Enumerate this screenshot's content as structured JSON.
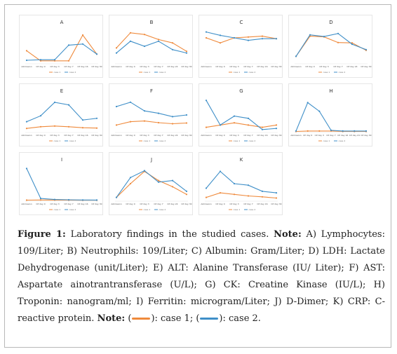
{
  "colors": {
    "case1": "#ef8a3c",
    "case2": "#3f8fc8"
  },
  "figure": {
    "label": "Figure 1:",
    "title_text": " Laboratory findings in the studied cases. ",
    "note_label": "Note:",
    "note_text": " A) Lymphocytes: 109/Liter; B) Neutrophils: 109/Liter; C) Albumin: Gram/Liter; D) LDH: Lactate Dehydrogenase (unit/Liter); E) ALT: Alanine Transferase (IU/ Liter); F) AST: Aspartate ainotrantransferase (U/L); G) CK: Creatine Kinase (IU/L); H) Troponin: nanogram/ml; I) Ferritin: microgram/Liter; J) D-Dimer; K) CRP: C-reactive protein. ",
    "note2_label": "Note:",
    "legend_open1": " (",
    "legend_mid": "): case 1; (",
    "legend_end": "): case 2."
  },
  "chart_data": [
    {
      "panel": "A",
      "type": "line",
      "categories": [
        "Admission",
        "CP day 0",
        "CP day 3",
        "CP day 7",
        "CP day 16",
        "CP day 30"
      ],
      "series": [
        {
          "name": "case 1",
          "values": [
            2.2,
            0.4,
            0.4,
            0.4,
            5.0,
            1.6
          ]
        },
        {
          "name": "case 2",
          "values": [
            0.5,
            0.6,
            0.6,
            3.2,
            3.4,
            1.6
          ]
        }
      ],
      "ylim": [
        0,
        6
      ]
    },
    {
      "panel": "B",
      "type": "line",
      "categories": [
        "Admission",
        "CP day 0",
        "CP day 3",
        "CP day 7",
        "CP day 24",
        "CP day 30"
      ],
      "series": [
        {
          "name": "case 1",
          "values": [
            9.0,
            18.0,
            17.0,
            14.0,
            12.0,
            7.0
          ]
        },
        {
          "name": "case 2",
          "values": [
            6.0,
            13.0,
            10.0,
            13.0,
            8.0,
            6.0
          ]
        }
      ],
      "ylim": [
        0,
        20
      ]
    },
    {
      "panel": "C",
      "type": "line",
      "categories": [
        "Admission",
        "CP day 0",
        "CP day 3",
        "CP day 7",
        "CP day 16",
        "CP day 30"
      ],
      "series": [
        {
          "name": "case 1",
          "values": [
            30,
            24,
            30,
            31,
            32,
            29
          ]
        },
        {
          "name": "case 2",
          "values": [
            37,
            33,
            30,
            27,
            29,
            29
          ]
        }
      ],
      "ylim": [
        0,
        40
      ]
    },
    {
      "panel": "D",
      "type": "line",
      "categories": [
        "Admission",
        "CP day 0",
        "CP day 3",
        "CP day 7",
        "CP day 24",
        "CP day 30"
      ],
      "series": [
        {
          "name": "case 1",
          "values": [
            200,
            800,
            780,
            610,
            600,
            380
          ]
        },
        {
          "name": "case 2",
          "values": [
            200,
            840,
            790,
            880,
            560,
            400
          ]
        }
      ],
      "ylim": [
        0,
        1000
      ]
    },
    {
      "panel": "E",
      "type": "line",
      "categories": [
        "Admission",
        "CP day 0",
        "CP day 3",
        "CP day 7",
        "CP day 16",
        "CP day 30"
      ],
      "series": [
        {
          "name": "case 1",
          "values": [
            20,
            30,
            34,
            30,
            24,
            22
          ]
        },
        {
          "name": "case 2",
          "values": [
            60,
            95,
            175,
            160,
            70,
            80
          ]
        }
      ],
      "ylim": [
        0,
        200
      ]
    },
    {
      "panel": "F",
      "type": "line",
      "categories": [
        "Admission",
        "CP day 0",
        "CP day 3",
        "CP day 7",
        "CP day 24",
        "CP day 30"
      ],
      "series": [
        {
          "name": "case 1",
          "values": [
            20,
            30,
            32,
            27,
            24,
            26
          ]
        },
        {
          "name": "case 2",
          "values": [
            75,
            88,
            62,
            55,
            45,
            50
          ]
        }
      ],
      "ylim": [
        0,
        100
      ]
    },
    {
      "panel": "G",
      "type": "line",
      "categories": [
        "Admission",
        "CP day 0",
        "CP day 3",
        "CP day 7",
        "CP day 16",
        "CP day 30"
      ],
      "series": [
        {
          "name": "case 1",
          "values": [
            40,
            60,
            80,
            60,
            40,
            60
          ]
        },
        {
          "name": "case 2",
          "values": [
            280,
            60,
            140,
            120,
            20,
            30
          ]
        }
      ],
      "ylim": [
        0,
        300
      ]
    },
    {
      "panel": "H",
      "type": "line",
      "categories": [
        "Admission",
        "CP day 0",
        "CP day 3",
        "CP day 7",
        "CP day 16",
        "CP day 24",
        "CP day 30"
      ],
      "series": [
        {
          "name": "case 1",
          "values": [
            0.01,
            0.02,
            0.02,
            0.02,
            0.01,
            0.01,
            0.01
          ]
        },
        {
          "name": "case 2",
          "values": [
            0.02,
            0.78,
            0.55,
            0.04,
            0.02,
            0.02,
            0.02
          ]
        }
      ],
      "ylim": [
        0,
        0.9
      ]
    },
    {
      "panel": "I",
      "type": "line",
      "categories": [
        "Admission",
        "CP day 0",
        "CP day 3",
        "CP day 7",
        "CP day 16",
        "CP day 30"
      ],
      "series": [
        {
          "name": "case 1",
          "values": [
            20,
            30,
            25,
            20,
            18,
            15
          ]
        },
        {
          "name": "case 2",
          "values": [
            1900,
            120,
            60,
            40,
            30,
            25
          ]
        }
      ],
      "ylim": [
        0,
        2000
      ]
    },
    {
      "panel": "J",
      "type": "line",
      "categories": [
        "Admission",
        "CP day 0",
        "CP day 3",
        "CP day 7",
        "CP day 24",
        "CP day 30"
      ],
      "series": [
        {
          "name": "case 1",
          "values": [
            200,
            1100,
            1900,
            1300,
            900,
            400
          ]
        },
        {
          "name": "case 2",
          "values": [
            200,
            1500,
            1950,
            1200,
            1300,
            600
          ]
        }
      ],
      "ylim": [
        0,
        2200
      ]
    },
    {
      "panel": "K",
      "type": "line",
      "categories": [
        "Admission",
        "CP day 0",
        "CP day 3",
        "CP day 7",
        "CP day 16",
        "CP day 30"
      ],
      "series": [
        {
          "name": "case 1",
          "values": [
            10,
            25,
            20,
            15,
            12,
            8
          ]
        },
        {
          "name": "case 2",
          "values": [
            40,
            95,
            55,
            50,
            30,
            25
          ]
        }
      ],
      "ylim": [
        0,
        110
      ]
    }
  ]
}
